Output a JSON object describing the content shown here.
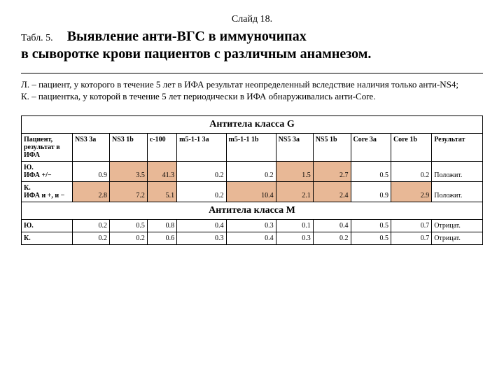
{
  "slide_number": "Слайд 18.",
  "tabl_label": "Табл. 5.",
  "title_line1": "Выявление анти-ВГС в иммуночипах",
  "title_line2": "в сыворотке крови пациентов с различным анамнезом.",
  "desc_line1": "Л. – пациент, у которого в течение 5 лет в ИФА результат неопределенный вследствие наличия только анти-NS4;",
  "desc_line2": "К. – пациентка, у которой в течение 5 лет периодически в ИФА обнаруживались анти-Core.",
  "peach": "#e8b896",
  "white": "#ffffff",
  "table": {
    "section_g": "Антитела класса G",
    "section_m": "Антитела класса М",
    "col_patient": "Пациент, результат в ИФА",
    "cols": [
      "NS3 3a",
      "NS3 1b",
      "c-100",
      "m5-1-1 3a",
      "m5-1-1 1b",
      "NS5 3a",
      "NS5 1b",
      "Core 3a",
      "Core 1b"
    ],
    "col_result": "Результат",
    "rows_g": [
      {
        "label": "Ю.\nИФА +/−",
        "vals": [
          "0.9",
          "3.5",
          "41.3",
          "0.2",
          "0.2",
          "1.5",
          "2.7",
          "0.5",
          "0.2"
        ],
        "hi": [
          false,
          true,
          true,
          false,
          false,
          true,
          true,
          false,
          false
        ],
        "result": "Положит."
      },
      {
        "label": "К.\nИФА и +, и −",
        "vals": [
          "2.8",
          "7.2",
          "5.1",
          "0.2",
          "10.4",
          "2.1",
          "2.4",
          "0.9",
          "2.9"
        ],
        "hi": [
          true,
          true,
          true,
          false,
          true,
          true,
          true,
          false,
          true
        ],
        "result": "Положит."
      }
    ],
    "rows_m": [
      {
        "label": "Ю.",
        "vals": [
          "0.2",
          "0.5",
          "0.8",
          "0.4",
          "0.3",
          "0.1",
          "0.4",
          "0.5",
          "0.7"
        ],
        "hi": [
          false,
          false,
          false,
          false,
          false,
          false,
          false,
          false,
          false
        ],
        "result": "Отрицат."
      },
      {
        "label": "К.",
        "vals": [
          "0.2",
          "0.2",
          "0.6",
          "0.3",
          "0.4",
          "0.3",
          "0.2",
          "0.5",
          "0.7"
        ],
        "hi": [
          false,
          false,
          false,
          false,
          false,
          false,
          false,
          false,
          false
        ],
        "result": "Отрицат."
      }
    ]
  }
}
